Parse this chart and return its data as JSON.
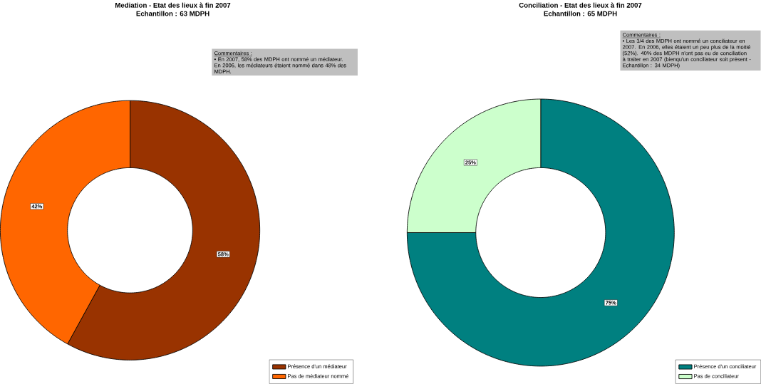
{
  "chart_data": [
    {
      "type": "donut",
      "title": "Mediation - Etat des lieux à fin 2007",
      "subtitle": "Echantillon : 63 MDPH",
      "categories": [
        "Présence d'un médiateur",
        "Pas de médiateur nommé"
      ],
      "values": [
        58,
        42
      ],
      "value_labels": [
        "58%",
        "42%"
      ],
      "colors": [
        "#993300",
        "#ff6600"
      ],
      "legend": "bottom right",
      "annotations": [
        "Commentaires :",
        "• En 2007, 58% des MDPH ont nommé  un médiateur. En 2006, les médiateurs étaient nommé dans 48% des MDPH."
      ]
    },
    {
      "type": "donut",
      "title": "Conciliation - Etat des lieux à fin 2007",
      "subtitle": "Echantillon : 65 MDPH",
      "categories": [
        "Présence d'un conciliateur",
        "Pas de conciliateur"
      ],
      "values": [
        75,
        25
      ],
      "value_labels": [
        "75%",
        "25%"
      ],
      "colors": [
        "#008080",
        "#ccffcc"
      ],
      "legend": "bottom right",
      "annotations": [
        "Commentaires :",
        "• Les 3/4 des MDPH ont nommé un conciliateur en 2007. En 2006, elles étaient un peu plus de la moitié (52%). 40% des MDPH n'ont pas eu de conciliation à traiter en 2007 (bienqu'un conciliateur soit présent - Echantillon : 34 MDPH)"
      ]
    }
  ]
}
